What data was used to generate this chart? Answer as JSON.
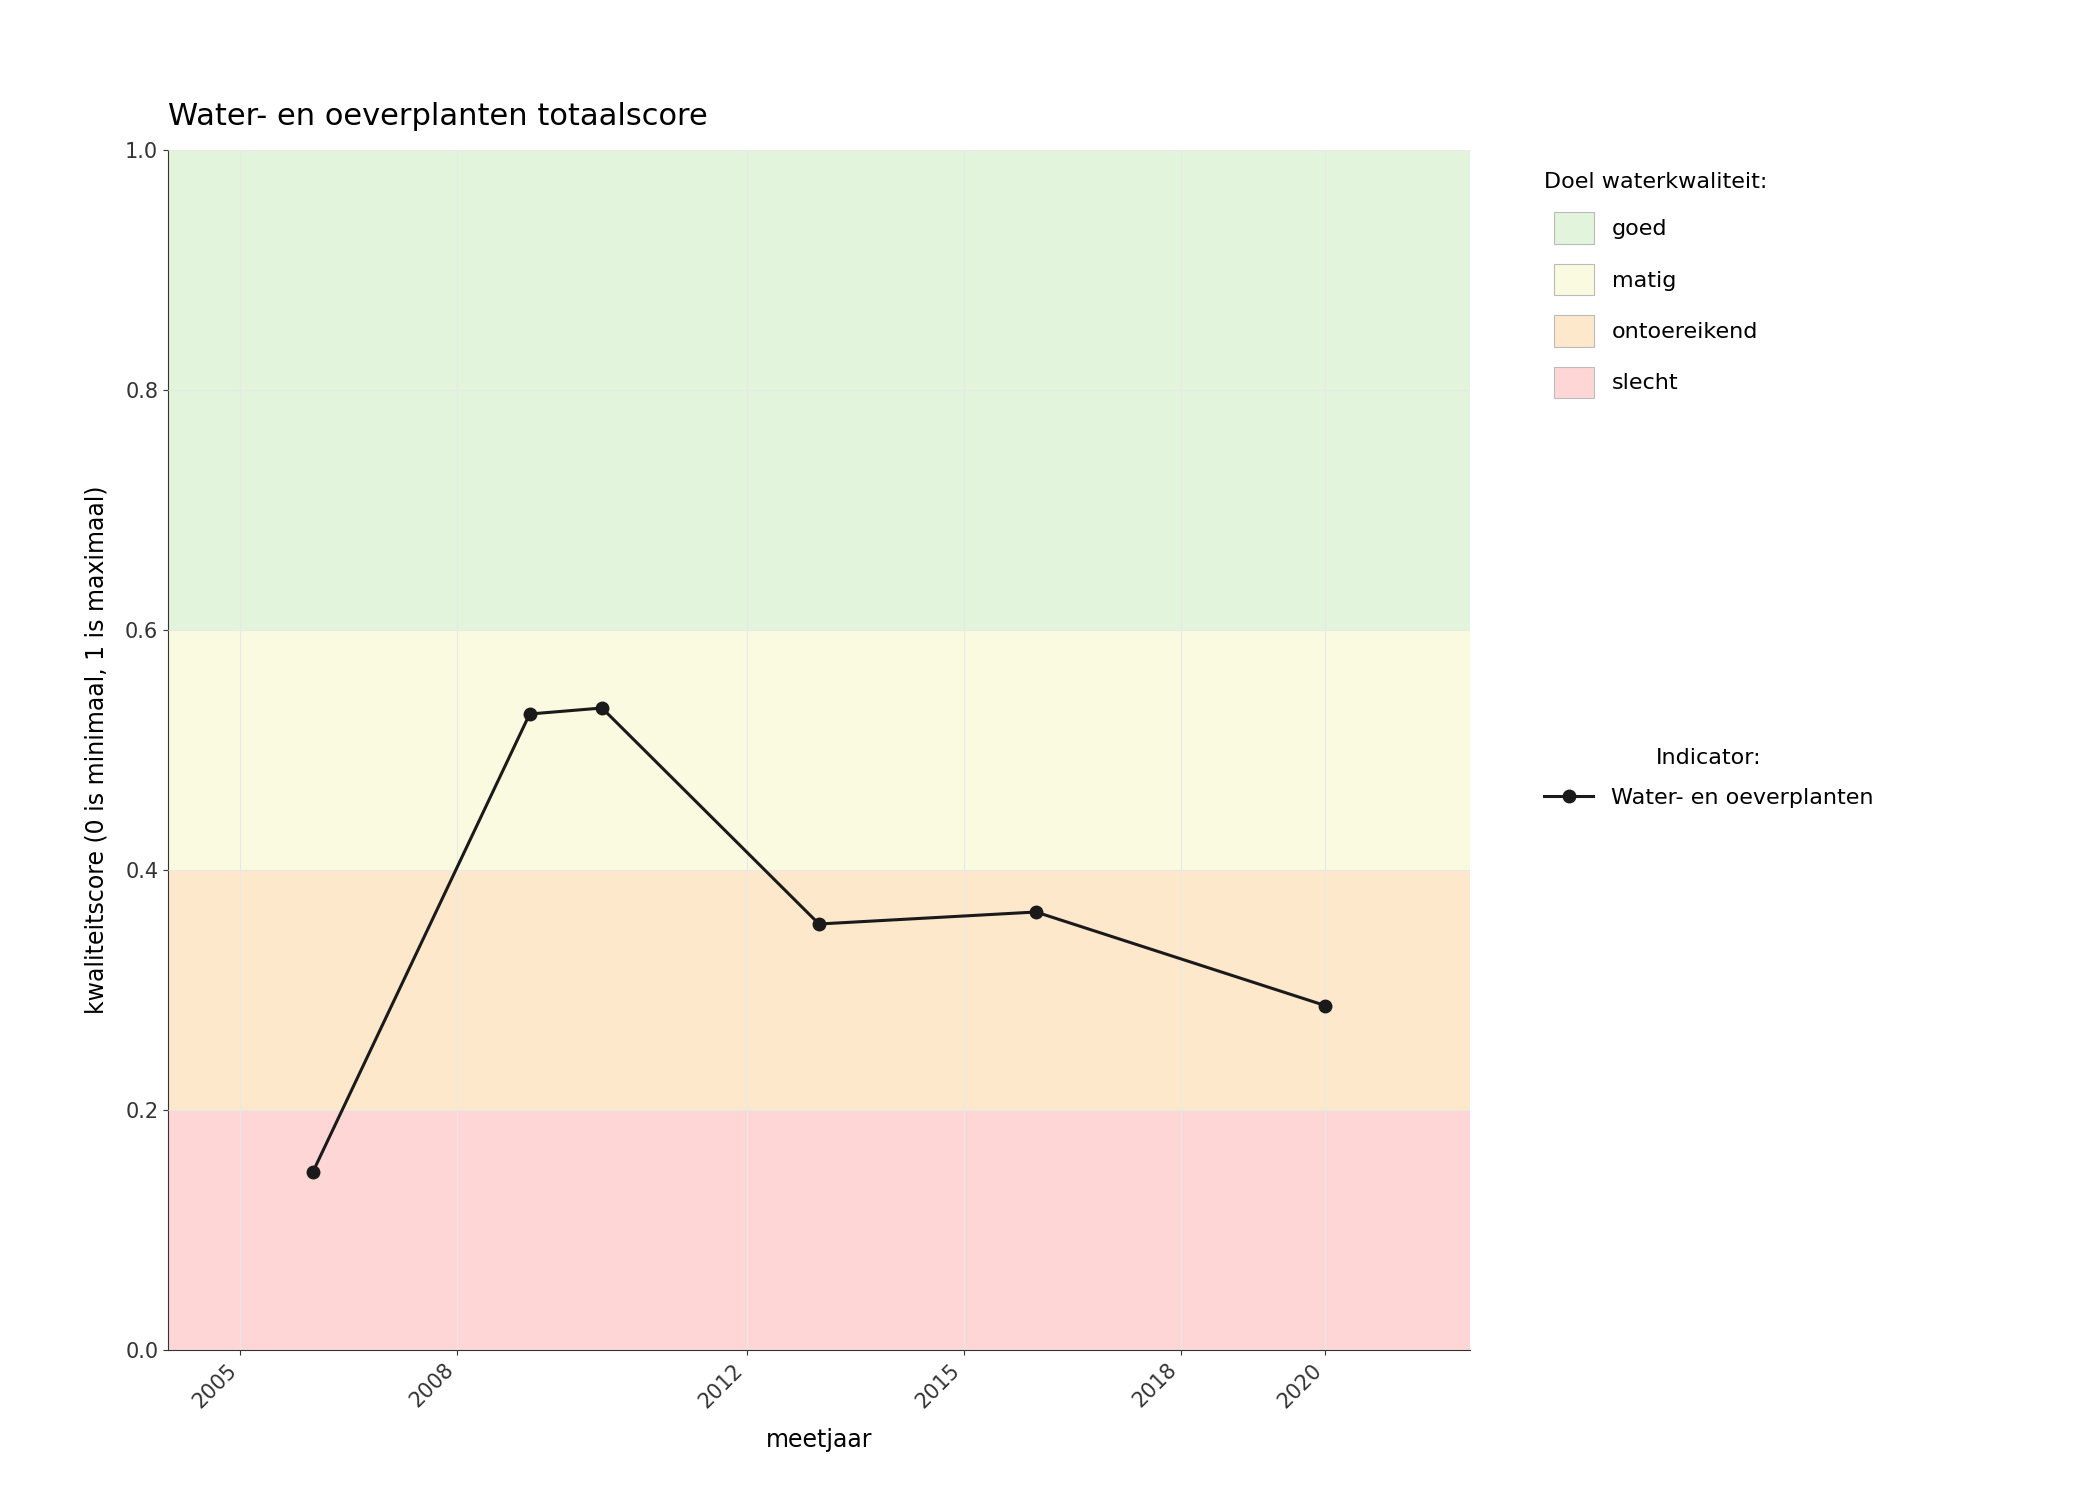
{
  "title": "Water- en oeverplanten totaalscore",
  "xlabel": "meetjaar",
  "ylabel": "kwaliteitscore (0 is minimaal, 1 is maximaal)",
  "xlim": [
    2004.0,
    2022.0
  ],
  "ylim": [
    0.0,
    1.0
  ],
  "xticks": [
    2005,
    2008,
    2012,
    2015,
    2018,
    2020
  ],
  "yticks": [
    0.0,
    0.2,
    0.4,
    0.6,
    0.8,
    1.0
  ],
  "data_x": [
    2006,
    2009,
    2010,
    2013,
    2016,
    2020
  ],
  "data_y": [
    0.148,
    0.53,
    0.535,
    0.355,
    0.365,
    0.287
  ],
  "line_color": "#1a1a1a",
  "marker": "o",
  "markersize": 9,
  "linewidth": 2.2,
  "bg_zones": [
    {
      "ymin": 0.0,
      "ymax": 0.2,
      "color": "#ffd6d6",
      "label": "slecht"
    },
    {
      "ymin": 0.2,
      "ymax": 0.4,
      "color": "#fde8cc",
      "label": "ontoereikend"
    },
    {
      "ymin": 0.4,
      "ymax": 0.6,
      "color": "#fafae0",
      "label": "matig"
    },
    {
      "ymin": 0.6,
      "ymax": 1.0,
      "color": "#e2f4dc",
      "label": "goed"
    }
  ],
  "legend_title_quality": "Doel waterkwaliteit:",
  "legend_title_indicator": "Indicator:",
  "legend_indicator_label": "Water- en oeverplanten",
  "grid_color": "#e8e8e8",
  "grid_linewidth": 0.8,
  "bg_color": "#ffffff",
  "title_fontsize": 22,
  "label_fontsize": 17,
  "tick_fontsize": 15,
  "legend_fontsize": 16,
  "tick_rotation": 45
}
